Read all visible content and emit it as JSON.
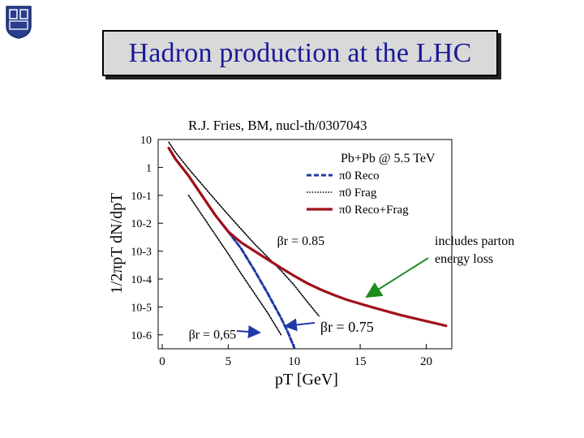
{
  "slide": {
    "title": "Hadron production at the LHC",
    "reference": "R.J. Fries, BM, nucl-th/0307043",
    "note_line1": "includes parton",
    "note_line2": "energy loss"
  },
  "colors": {
    "title_text": "#1a1a99",
    "title_box": "#d9d9d9",
    "reco": "#1f3aa6",
    "frag": "#000000",
    "reco_frag": "#a0101a",
    "arrow": "#1e8c1e"
  },
  "chart_data": {
    "type": "line",
    "xlabel": "pT [GeV]",
    "ylabel": "1/2πpT dN/dpT",
    "xlim": [
      0,
      22
    ],
    "ylim_log10": [
      -6.5,
      1.0
    ],
    "x_ticks": [
      0,
      5,
      10,
      15,
      20
    ],
    "y_ticks": [
      {
        "value": 10,
        "label": "10"
      },
      {
        "value": 1,
        "label": "1"
      },
      {
        "value": 0.1,
        "label": "10-1"
      },
      {
        "value": 0.01,
        "label": "10-2"
      },
      {
        "value": 0.001,
        "label": "10-3"
      },
      {
        "value": 0.0001,
        "label": "10-4"
      },
      {
        "value": 1e-05,
        "label": "10-5"
      },
      {
        "value": 1e-06,
        "label": "10-6"
      }
    ],
    "legend": {
      "position": "top-right",
      "header": "Pb+Pb @ 5.5 TeV",
      "entries": [
        {
          "label": "π0 Reco",
          "style": "dashed",
          "color": "#1f3aa6"
        },
        {
          "label": "π0 Frag",
          "style": "dotted",
          "color": "#000000"
        },
        {
          "label": "π0 Reco+Frag",
          "style": "solid",
          "color": "#a0101a"
        }
      ]
    },
    "series": [
      {
        "name": "π0 Reco+Frag",
        "style": "solid",
        "color": "#a0101a",
        "x": [
          0.5,
          1,
          2,
          3,
          4,
          5,
          6,
          7,
          8,
          9,
          10,
          11,
          12,
          13,
          14,
          15,
          16,
          17,
          18,
          19,
          20,
          21,
          21.5
        ],
        "y": [
          5,
          2,
          0.5,
          0.1,
          0.02,
          0.005,
          0.002,
          0.001,
          0.0005,
          0.00025,
          0.00013,
          7e-05,
          4.2e-05,
          2.7e-05,
          1.8e-05,
          1.3e-05,
          9.5e-06,
          7e-06,
          5.2e-06,
          4e-06,
          3.1e-06,
          2.4e-06,
          2.1e-06
        ]
      },
      {
        "name": "π0 Reco",
        "style": "dashed",
        "color": "#1f3aa6",
        "x": [
          0.5,
          1,
          2,
          3,
          4,
          5,
          6,
          7,
          8,
          9,
          9.5,
          10
        ],
        "y": [
          5,
          2,
          0.5,
          0.1,
          0.02,
          0.005,
          0.0012,
          0.0002,
          3e-05,
          4e-06,
          1.3e-06,
          3.5e-07
        ]
      },
      {
        "name": "π0 Frag",
        "style": "dotted",
        "color": "#000000",
        "x": [
          0.5,
          1,
          2,
          3,
          4,
          5,
          6,
          7,
          8,
          9,
          10,
          11,
          12,
          13
        ],
        "y": [
          8,
          3.5,
          0.9,
          0.25,
          0.07,
          0.02,
          0.006,
          0.0018,
          0.0006,
          0.0002,
          6e-05,
          1.5e-05,
          4e-06,
          1e-06
        ]
      },
      {
        "style": "dotted",
        "color": "#000000",
        "x": [
          2,
          3,
          4,
          5,
          6,
          7,
          8,
          9
        ],
        "y": [
          0.1,
          0.02,
          0.004,
          0.0008,
          0.00015,
          3e-05,
          6e-06,
          1e-06
        ]
      }
    ],
    "annotations": [
      {
        "text": "βr = 0.85",
        "x": 10.5,
        "y": 0.0025
      },
      {
        "text": "βr = 0,65",
        "x": 3.8,
        "y": 1.1e-06
      },
      {
        "text": "βr = 0.75",
        "x": 14.0,
        "y": 1.9e-06
      }
    ]
  }
}
